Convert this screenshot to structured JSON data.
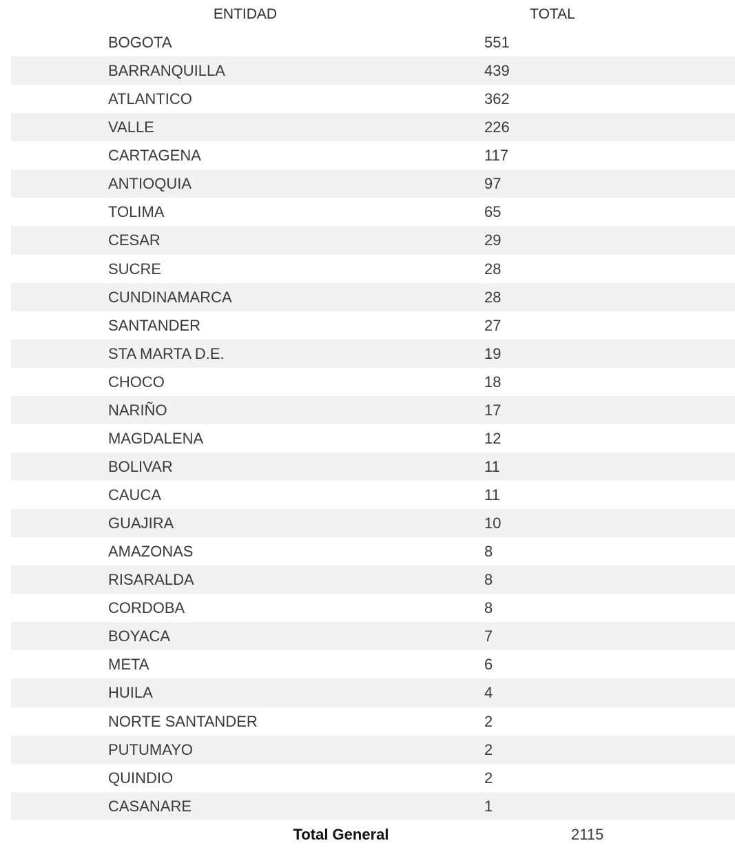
{
  "header": {
    "entity": "ENTIDAD",
    "total": "TOTAL"
  },
  "colors": {
    "stripe": "#f1f1f1",
    "text": "#3a3a3a"
  },
  "rows": [
    {
      "entity": "BOGOTA",
      "total": "551"
    },
    {
      "entity": "BARRANQUILLA",
      "total": "439"
    },
    {
      "entity": "ATLANTICO",
      "total": "362"
    },
    {
      "entity": "VALLE",
      "total": "226"
    },
    {
      "entity": "CARTAGENA",
      "total": "117"
    },
    {
      "entity": "ANTIOQUIA",
      "total": "97"
    },
    {
      "entity": "TOLIMA",
      "total": "65"
    },
    {
      "entity": "CESAR",
      "total": "29"
    },
    {
      "entity": "SUCRE",
      "total": "28"
    },
    {
      "entity": "CUNDINAMARCA",
      "total": "28"
    },
    {
      "entity": "SANTANDER",
      "total": "27"
    },
    {
      "entity": "STA MARTA D.E.",
      "total": "19"
    },
    {
      "entity": "CHOCO",
      "total": "18"
    },
    {
      "entity": "NARIÑO",
      "total": "17"
    },
    {
      "entity": "MAGDALENA",
      "total": "12"
    },
    {
      "entity": "BOLIVAR",
      "total": "11"
    },
    {
      "entity": "CAUCA",
      "total": "11"
    },
    {
      "entity": "GUAJIRA",
      "total": "10"
    },
    {
      "entity": "AMAZONAS",
      "total": "8"
    },
    {
      "entity": "RISARALDA",
      "total": "8"
    },
    {
      "entity": "CORDOBA",
      "total": "8"
    },
    {
      "entity": "BOYACA",
      "total": "7"
    },
    {
      "entity": "META",
      "total": "6"
    },
    {
      "entity": "HUILA",
      "total": "4"
    },
    {
      "entity": "NORTE SANTANDER",
      "total": "2"
    },
    {
      "entity": "PUTUMAYO",
      "total": "2"
    },
    {
      "entity": "QUINDIO",
      "total": "2"
    },
    {
      "entity": "CASANARE",
      "total": "1"
    }
  ],
  "footer": {
    "label": "Total General",
    "value": "2115"
  }
}
